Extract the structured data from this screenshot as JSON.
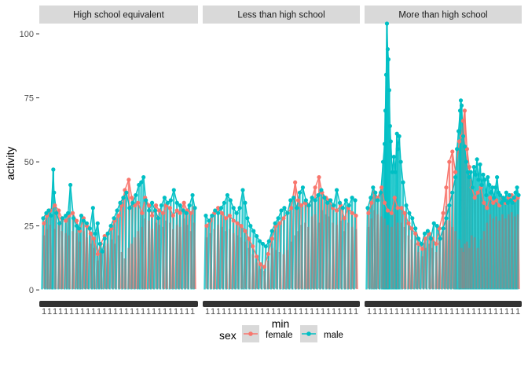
{
  "chart_data": {
    "type": "line",
    "facet_variable": "education",
    "facets": [
      "High school equivalent",
      "Less than high school",
      "More than high school"
    ],
    "xlabel": "min",
    "ylabel": "activity",
    "y_ticks": [
      0,
      25,
      50,
      75,
      100
    ],
    "ylim": [
      -1.5,
      104
    ],
    "x_tick_labels_overplotted": true,
    "x_tick_label_char": "1",
    "grid": false,
    "legend": {
      "title": "sex",
      "position": "bottom",
      "entries": [
        "female",
        "male"
      ]
    },
    "series_colors": {
      "female": "#F8766D",
      "male": "#00BFC4"
    },
    "series_values": {
      "female": [
        [
          [
            4,
            26
          ],
          [
            8,
            29
          ],
          [
            12,
            31
          ],
          [
            18,
            33
          ],
          [
            23,
            31
          ],
          [
            27,
            28
          ],
          [
            32,
            27
          ],
          [
            36,
            29
          ],
          [
            41,
            30
          ],
          [
            46,
            27
          ],
          [
            50,
            23
          ],
          [
            55,
            28
          ],
          [
            59,
            25
          ],
          [
            64,
            22
          ],
          [
            68,
            20
          ],
          [
            73,
            14
          ],
          [
            77,
            18
          ],
          [
            82,
            21
          ],
          [
            86,
            22
          ],
          [
            91,
            24
          ],
          [
            95,
            27
          ],
          [
            100,
            29
          ],
          [
            104,
            33
          ],
          [
            108,
            39
          ],
          [
            113,
            43
          ],
          [
            117,
            36
          ],
          [
            121,
            33
          ],
          [
            125,
            34
          ],
          [
            130,
            30
          ],
          [
            134,
            36
          ],
          [
            139,
            33
          ],
          [
            143,
            29
          ],
          [
            148,
            33
          ],
          [
            152,
            31
          ],
          [
            157,
            30
          ],
          [
            161,
            33
          ],
          [
            166,
            32
          ],
          [
            170,
            29
          ],
          [
            175,
            31
          ],
          [
            179,
            30
          ],
          [
            184,
            34
          ],
          [
            188,
            31
          ],
          [
            193,
            30
          ],
          [
            197,
            32
          ]
        ],
        [
          [
            3,
            25
          ],
          [
            8,
            27
          ],
          [
            13,
            30
          ],
          [
            18,
            32
          ],
          [
            23,
            30
          ],
          [
            28,
            28
          ],
          [
            33,
            29
          ],
          [
            38,
            27
          ],
          [
            43,
            26
          ],
          [
            48,
            25
          ],
          [
            53,
            23
          ],
          [
            58,
            20
          ],
          [
            63,
            17
          ],
          [
            68,
            13
          ],
          [
            73,
            10
          ],
          [
            78,
            9
          ],
          [
            83,
            14
          ],
          [
            88,
            20
          ],
          [
            93,
            25
          ],
          [
            98,
            26
          ],
          [
            103,
            28
          ],
          [
            108,
            30
          ],
          [
            113,
            32
          ],
          [
            118,
            42
          ],
          [
            122,
            35
          ],
          [
            126,
            33
          ],
          [
            131,
            34
          ],
          [
            135,
            33
          ],
          [
            140,
            36
          ],
          [
            144,
            40
          ],
          [
            149,
            44
          ],
          [
            153,
            38
          ],
          [
            158,
            36
          ],
          [
            162,
            35
          ],
          [
            167,
            32
          ],
          [
            172,
            31
          ],
          [
            177,
            33
          ],
          [
            182,
            28
          ],
          [
            187,
            32
          ],
          [
            192,
            30
          ],
          [
            197,
            29
          ]
        ],
        [
          [
            3,
            30
          ],
          [
            7,
            34
          ],
          [
            11,
            38
          ],
          [
            15,
            36
          ],
          [
            20,
            40
          ],
          [
            24,
            34
          ],
          [
            28,
            31
          ],
          [
            33,
            30
          ],
          [
            37,
            36
          ],
          [
            41,
            32
          ],
          [
            46,
            32
          ],
          [
            50,
            30
          ],
          [
            55,
            26
          ],
          [
            59,
            24
          ],
          [
            64,
            22
          ],
          [
            68,
            18
          ],
          [
            73,
            16
          ],
          [
            77,
            20
          ],
          [
            82,
            22
          ],
          [
            86,
            20
          ],
          [
            91,
            18
          ],
          [
            95,
            24
          ],
          [
            100,
            30
          ],
          [
            104,
            40
          ],
          [
            108,
            50
          ],
          [
            112,
            54
          ],
          [
            116,
            46
          ],
          [
            121,
            58
          ],
          [
            124,
            60
          ],
          [
            126,
            66
          ],
          [
            128,
            70
          ],
          [
            131,
            55
          ],
          [
            134,
            48
          ],
          [
            137,
            40
          ],
          [
            141,
            36
          ],
          [
            145,
            38
          ],
          [
            149,
            40
          ],
          [
            153,
            34
          ],
          [
            157,
            32
          ],
          [
            161,
            36
          ],
          [
            165,
            34
          ],
          [
            169,
            35
          ],
          [
            173,
            33
          ],
          [
            177,
            36
          ],
          [
            181,
            34
          ],
          [
            185,
            36
          ],
          [
            189,
            37
          ],
          [
            193,
            35
          ],
          [
            197,
            36
          ]
        ]
      ],
      "male": [
        [
          [
            3,
            28
          ],
          [
            7,
            30
          ],
          [
            10,
            31
          ],
          [
            13,
            29
          ],
          [
            16,
            47
          ],
          [
            17,
            38
          ],
          [
            20,
            30
          ],
          [
            24,
            26
          ],
          [
            28,
            28
          ],
          [
            32,
            29
          ],
          [
            35,
            30
          ],
          [
            38,
            41
          ],
          [
            42,
            28
          ],
          [
            46,
            25
          ],
          [
            49,
            24
          ],
          [
            52,
            29
          ],
          [
            55,
            27
          ],
          [
            59,
            26
          ],
          [
            63,
            24
          ],
          [
            67,
            32
          ],
          [
            70,
            22
          ],
          [
            73,
            26
          ],
          [
            76,
            18
          ],
          [
            79,
            15
          ],
          [
            82,
            20
          ],
          [
            86,
            22
          ],
          [
            90,
            25
          ],
          [
            94,
            28
          ],
          [
            98,
            31
          ],
          [
            102,
            34
          ],
          [
            106,
            36
          ],
          [
            110,
            38
          ],
          [
            114,
            32
          ],
          [
            118,
            34
          ],
          [
            122,
            37
          ],
          [
            126,
            41
          ],
          [
            129,
            42
          ],
          [
            132,
            44
          ],
          [
            135,
            35
          ],
          [
            139,
            31
          ],
          [
            143,
            34
          ],
          [
            147,
            31
          ],
          [
            151,
            28
          ],
          [
            155,
            33
          ],
          [
            159,
            36
          ],
          [
            163,
            34
          ],
          [
            167,
            35
          ],
          [
            171,
            39
          ],
          [
            175,
            34
          ],
          [
            179,
            33
          ],
          [
            183,
            31
          ],
          [
            187,
            30
          ],
          [
            191,
            33
          ],
          [
            195,
            37
          ],
          [
            198,
            32
          ]
        ],
        [
          [
            2,
            29
          ],
          [
            6,
            27
          ],
          [
            10,
            29
          ],
          [
            14,
            31
          ],
          [
            18,
            30
          ],
          [
            22,
            32
          ],
          [
            26,
            34
          ],
          [
            30,
            37
          ],
          [
            34,
            35
          ],
          [
            38,
            32
          ],
          [
            42,
            30
          ],
          [
            46,
            32
          ],
          [
            50,
            39
          ],
          [
            53,
            34
          ],
          [
            56,
            28
          ],
          [
            60,
            25
          ],
          [
            64,
            23
          ],
          [
            68,
            21
          ],
          [
            72,
            19
          ],
          [
            76,
            18
          ],
          [
            80,
            17
          ],
          [
            84,
            19
          ],
          [
            88,
            23
          ],
          [
            92,
            26
          ],
          [
            96,
            28
          ],
          [
            100,
            31
          ],
          [
            104,
            32
          ],
          [
            108,
            30
          ],
          [
            112,
            35
          ],
          [
            116,
            36
          ],
          [
            120,
            32
          ],
          [
            124,
            38
          ],
          [
            128,
            40
          ],
          [
            132,
            35
          ],
          [
            136,
            33
          ],
          [
            140,
            36
          ],
          [
            144,
            35
          ],
          [
            148,
            37
          ],
          [
            152,
            39
          ],
          [
            156,
            36
          ],
          [
            160,
            34
          ],
          [
            164,
            35
          ],
          [
            168,
            33
          ],
          [
            172,
            39
          ],
          [
            176,
            34
          ],
          [
            180,
            32
          ],
          [
            184,
            35
          ],
          [
            188,
            33
          ],
          [
            192,
            36
          ],
          [
            196,
            35
          ]
        ],
        [
          [
            2,
            32
          ],
          [
            6,
            36
          ],
          [
            9,
            40
          ],
          [
            12,
            38
          ],
          [
            15,
            35
          ],
          [
            19,
            38
          ],
          [
            22,
            50
          ],
          [
            24,
            57
          ],
          [
            25,
            70
          ],
          [
            26,
            84
          ],
          [
            27,
            104
          ],
          [
            28,
            94
          ],
          [
            29,
            90
          ],
          [
            30,
            78
          ],
          [
            31,
            64
          ],
          [
            32,
            58
          ],
          [
            34,
            46
          ],
          [
            36,
            52
          ],
          [
            38,
            46
          ],
          [
            40,
            61
          ],
          [
            41,
            55
          ],
          [
            43,
            60
          ],
          [
            45,
            50
          ],
          [
            48,
            42
          ],
          [
            52,
            33
          ],
          [
            56,
            30
          ],
          [
            60,
            28
          ],
          [
            64,
            24
          ],
          [
            68,
            20
          ],
          [
            72,
            18
          ],
          [
            76,
            22
          ],
          [
            80,
            23
          ],
          [
            84,
            20
          ],
          [
            88,
            26
          ],
          [
            92,
            25
          ],
          [
            96,
            20
          ],
          [
            100,
            24
          ],
          [
            104,
            28
          ],
          [
            108,
            33
          ],
          [
            112,
            38
          ],
          [
            116,
            44
          ],
          [
            118,
            55
          ],
          [
            120,
            62
          ],
          [
            122,
            70
          ],
          [
            123,
            74
          ],
          [
            124,
            72
          ],
          [
            126,
            60
          ],
          [
            128,
            56
          ],
          [
            130,
            50
          ],
          [
            132,
            46
          ],
          [
            134,
            44
          ],
          [
            136,
            46
          ],
          [
            138,
            40
          ],
          [
            140,
            48
          ],
          [
            142,
            45
          ],
          [
            144,
            51
          ],
          [
            146,
            43
          ],
          [
            148,
            49
          ],
          [
            150,
            41
          ],
          [
            152,
            45
          ],
          [
            154,
            43
          ],
          [
            156,
            37
          ],
          [
            158,
            44
          ],
          [
            160,
            41
          ],
          [
            162,
            38
          ],
          [
            164,
            40
          ],
          [
            166,
            36
          ],
          [
            168,
            40
          ],
          [
            170,
            44
          ],
          [
            172,
            38
          ],
          [
            174,
            37
          ],
          [
            176,
            34
          ],
          [
            178,
            36
          ],
          [
            180,
            35
          ],
          [
            182,
            38
          ],
          [
            184,
            34
          ],
          [
            186,
            37
          ],
          [
            188,
            35
          ],
          [
            190,
            34
          ],
          [
            192,
            36
          ],
          [
            194,
            38
          ],
          [
            196,
            40
          ],
          [
            198,
            37
          ]
        ]
      ]
    }
  }
}
